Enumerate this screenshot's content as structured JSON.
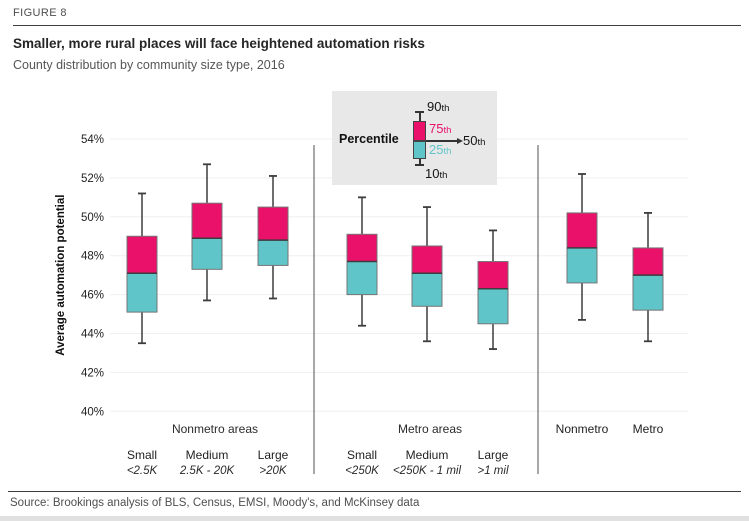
{
  "header": {
    "kicker": "FIGURE 8",
    "title": "Smaller, more rural places will face heightened automation risks",
    "subtitle": "County distribution by community size type, 2016"
  },
  "legend": {
    "title": "Percentile",
    "p90": {
      "num": "90",
      "suf": "th"
    },
    "p75": {
      "num": "75",
      "suf": "th"
    },
    "p50": {
      "num": "50",
      "suf": "th"
    },
    "p25": {
      "num": "25",
      "suf": "th"
    },
    "p10": {
      "num": "10",
      "suf": "th"
    }
  },
  "footer": {
    "source": "Source: Brookings analysis of BLS, Census, EMSI, Moody's, and McKinsey data"
  },
  "chart_data": {
    "type": "box",
    "title": "Smaller, more rural places will face heightened automation risks",
    "subtitle": "County distribution by community size type, 2016",
    "ylabel": "Average automation potential",
    "ylim": [
      40,
      54
    ],
    "ytick_step": 2,
    "ytick_suffix": "%",
    "grid": true,
    "percentiles_shown": [
      10,
      25,
      50,
      75,
      90
    ],
    "colors": {
      "box_upper": "#e9116a",
      "box_lower": "#5fc5c9",
      "whisker": "#3d3d3d",
      "box_border": "#757575",
      "grid": "#efefef",
      "divider": "#6e6e6e",
      "legend_bg": "#e8e8e8"
    },
    "groups": [
      {
        "label": "Nonmetro areas",
        "boxes": [
          {
            "label": "Small",
            "sublabel": "<2.5K",
            "p10": 43.5,
            "p25": 45.1,
            "p50": 47.1,
            "p75": 49.0,
            "p90": 51.2
          },
          {
            "label": "Medium",
            "sublabel": "2.5K - 20K",
            "p10": 45.7,
            "p25": 47.3,
            "p50": 48.9,
            "p75": 50.7,
            "p90": 52.7
          },
          {
            "label": "Large",
            "sublabel": ">20K",
            "p10": 45.8,
            "p25": 47.5,
            "p50": 48.8,
            "p75": 50.5,
            "p90": 52.1
          }
        ]
      },
      {
        "label": "Metro areas",
        "boxes": [
          {
            "label": "Small",
            "sublabel": "<250K",
            "p10": 44.4,
            "p25": 46.0,
            "p50": 47.7,
            "p75": 49.1,
            "p90": 51.0
          },
          {
            "label": "Medium",
            "sublabel": "<250K - 1 mil",
            "p10": 43.6,
            "p25": 45.4,
            "p50": 47.1,
            "p75": 48.5,
            "p90": 50.5
          },
          {
            "label": "Large",
            "sublabel": ">1 mil",
            "p10": 43.2,
            "p25": 44.5,
            "p50": 46.3,
            "p75": 47.7,
            "p90": 49.3
          }
        ]
      },
      {
        "label": "",
        "boxes": [
          {
            "label": "Nonmetro",
            "sublabel": "",
            "p10": 44.7,
            "p25": 46.6,
            "p50": 48.4,
            "p75": 50.2,
            "p90": 52.2
          },
          {
            "label": "Metro",
            "sublabel": "",
            "p10": 43.6,
            "p25": 45.2,
            "p50": 47.0,
            "p75": 48.4,
            "p90": 50.2
          }
        ]
      }
    ]
  }
}
